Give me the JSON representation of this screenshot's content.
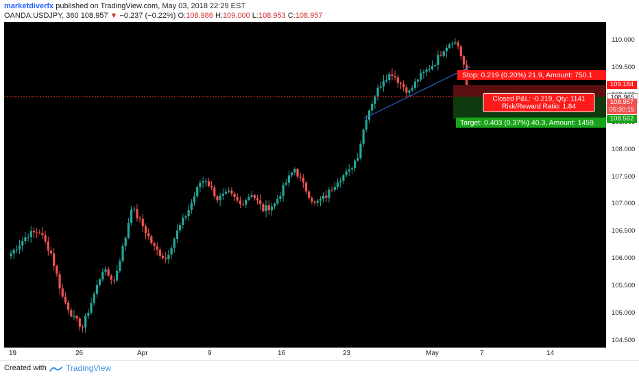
{
  "header": {
    "author": "marketdiverfx",
    "published": " published on TradingView.com, May 03, 2018 22:29 EST",
    "symbol": "OANDA:USDJPY, 360",
    "last": "108.957",
    "change_arrow": "▼",
    "change": "−0.237 (−0.22%)",
    "o_label": "O:",
    "o_value": "108.986",
    "h_label": "H:",
    "h_value": "109.000",
    "l_label": "L:",
    "l_value": "108.953",
    "c_label": "C:",
    "c_value": "108.957"
  },
  "chart_data": {
    "type": "candlestick",
    "y_ticks": [
      "110.000",
      "109.500",
      "109.000",
      "108.500",
      "108.000",
      "107.500",
      "107.000",
      "106.500",
      "106.000",
      "105.500",
      "105.000",
      "104.500"
    ],
    "ylim": [
      104.3,
      110.5
    ],
    "x_ticks": [
      "19",
      "26",
      "Apr",
      "9",
      "16",
      "23",
      "May",
      "7",
      "14"
    ],
    "price_labels": {
      "stop": "109.184",
      "current": "108.965",
      "last": "108.957",
      "countdown": "05:30:15",
      "target": "108.562"
    },
    "stop_box": "Stop: 0.219 (0.20%) 21.9, Amount: 750.1",
    "pnl_line1": "Closed P&L: -0.219, Qty: 1141",
    "pnl_line2": "Risk/Reward Ratio: 1.84",
    "target_box": "Target: 0.403 (0.37%) 40.3, Amount: 1459.",
    "colors": {
      "up": "#26a69a",
      "down": "#ef5350",
      "stop": "#ff1a1a",
      "target": "#19a319",
      "trend": "#2f5fd0"
    }
  },
  "footer": {
    "created": "Created with",
    "brand": "TradingView"
  }
}
